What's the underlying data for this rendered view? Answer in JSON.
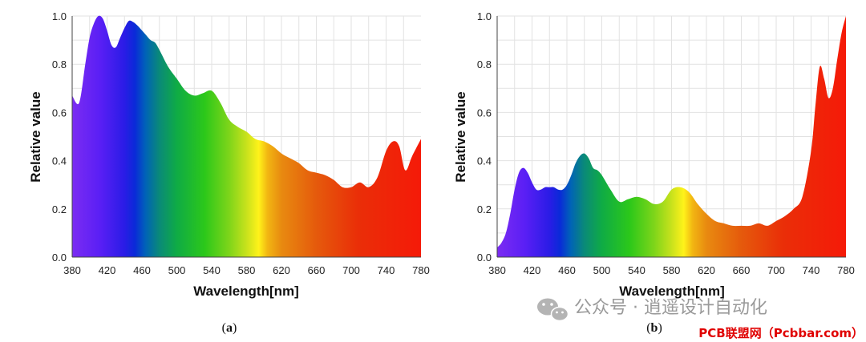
{
  "chart_data": [
    {
      "type": "area",
      "panel_label": "a",
      "title": "",
      "xlabel": "Wavelength[nm]",
      "ylabel": "Relative value",
      "xlim": [
        380,
        780
      ],
      "ylim": [
        0,
        1.0
      ],
      "xticks": [
        "380",
        "420",
        "460",
        "500",
        "540",
        "580",
        "620",
        "660",
        "700",
        "740",
        "780"
      ],
      "yticks": [
        "0.0",
        "0.2",
        "0.4",
        "0.6",
        "0.8",
        "1.0"
      ],
      "grid": true,
      "fill": "visible-spectrum gradient",
      "x": [
        380,
        388,
        395,
        400,
        405,
        410,
        415,
        420,
        425,
        430,
        435,
        440,
        445,
        450,
        455,
        460,
        465,
        470,
        475,
        480,
        490,
        500,
        510,
        520,
        530,
        540,
        550,
        560,
        570,
        580,
        590,
        600,
        610,
        620,
        630,
        640,
        650,
        660,
        670,
        680,
        690,
        700,
        710,
        720,
        730,
        740,
        748,
        755,
        762,
        770,
        780
      ],
      "values": [
        0.67,
        0.64,
        0.8,
        0.91,
        0.97,
        1.0,
        0.99,
        0.94,
        0.88,
        0.87,
        0.91,
        0.95,
        0.98,
        0.975,
        0.96,
        0.94,
        0.92,
        0.9,
        0.89,
        0.86,
        0.79,
        0.74,
        0.69,
        0.67,
        0.68,
        0.69,
        0.64,
        0.57,
        0.54,
        0.52,
        0.49,
        0.48,
        0.46,
        0.43,
        0.41,
        0.39,
        0.36,
        0.35,
        0.34,
        0.32,
        0.29,
        0.29,
        0.31,
        0.29,
        0.33,
        0.44,
        0.48,
        0.46,
        0.36,
        0.42,
        0.49
      ]
    },
    {
      "type": "area",
      "panel_label": "b",
      "title": "",
      "xlabel": "Wavelength[nm]",
      "ylabel": "Relative value",
      "xlim": [
        380,
        780
      ],
      "ylim": [
        0,
        1.0
      ],
      "xticks": [
        "380",
        "420",
        "460",
        "500",
        "540",
        "580",
        "620",
        "660",
        "700",
        "740",
        "780"
      ],
      "yticks": [
        "0.0",
        "0.2",
        "0.4",
        "0.6",
        "0.8",
        "1.0"
      ],
      "grid": true,
      "fill": "visible-spectrum gradient",
      "x": [
        380,
        385,
        390,
        395,
        400,
        405,
        410,
        415,
        420,
        425,
        430,
        435,
        440,
        445,
        450,
        455,
        460,
        465,
        470,
        475,
        480,
        485,
        490,
        495,
        500,
        510,
        520,
        530,
        540,
        550,
        560,
        570,
        580,
        590,
        600,
        610,
        620,
        630,
        640,
        650,
        660,
        670,
        680,
        690,
        700,
        710,
        720,
        730,
        740,
        745,
        750,
        755,
        760,
        765,
        770,
        775,
        780
      ],
      "values": [
        0.04,
        0.06,
        0.1,
        0.18,
        0.28,
        0.35,
        0.37,
        0.35,
        0.31,
        0.28,
        0.28,
        0.29,
        0.29,
        0.29,
        0.28,
        0.28,
        0.3,
        0.34,
        0.39,
        0.42,
        0.43,
        0.41,
        0.37,
        0.36,
        0.34,
        0.28,
        0.23,
        0.24,
        0.25,
        0.24,
        0.22,
        0.23,
        0.28,
        0.29,
        0.27,
        0.22,
        0.18,
        0.15,
        0.14,
        0.13,
        0.13,
        0.13,
        0.14,
        0.13,
        0.15,
        0.17,
        0.2,
        0.25,
        0.44,
        0.63,
        0.79,
        0.74,
        0.66,
        0.7,
        0.82,
        0.93,
        1.0
      ]
    }
  ],
  "watermark": {
    "text": "公众号 · 逍遥设计自动化",
    "site": "PCB联盟网（Pcbbar.com）"
  },
  "colors": {
    "grid": "#e2e2e2",
    "axis": "#444444",
    "watermark": "#9a9a9a",
    "site": "#e00000"
  }
}
